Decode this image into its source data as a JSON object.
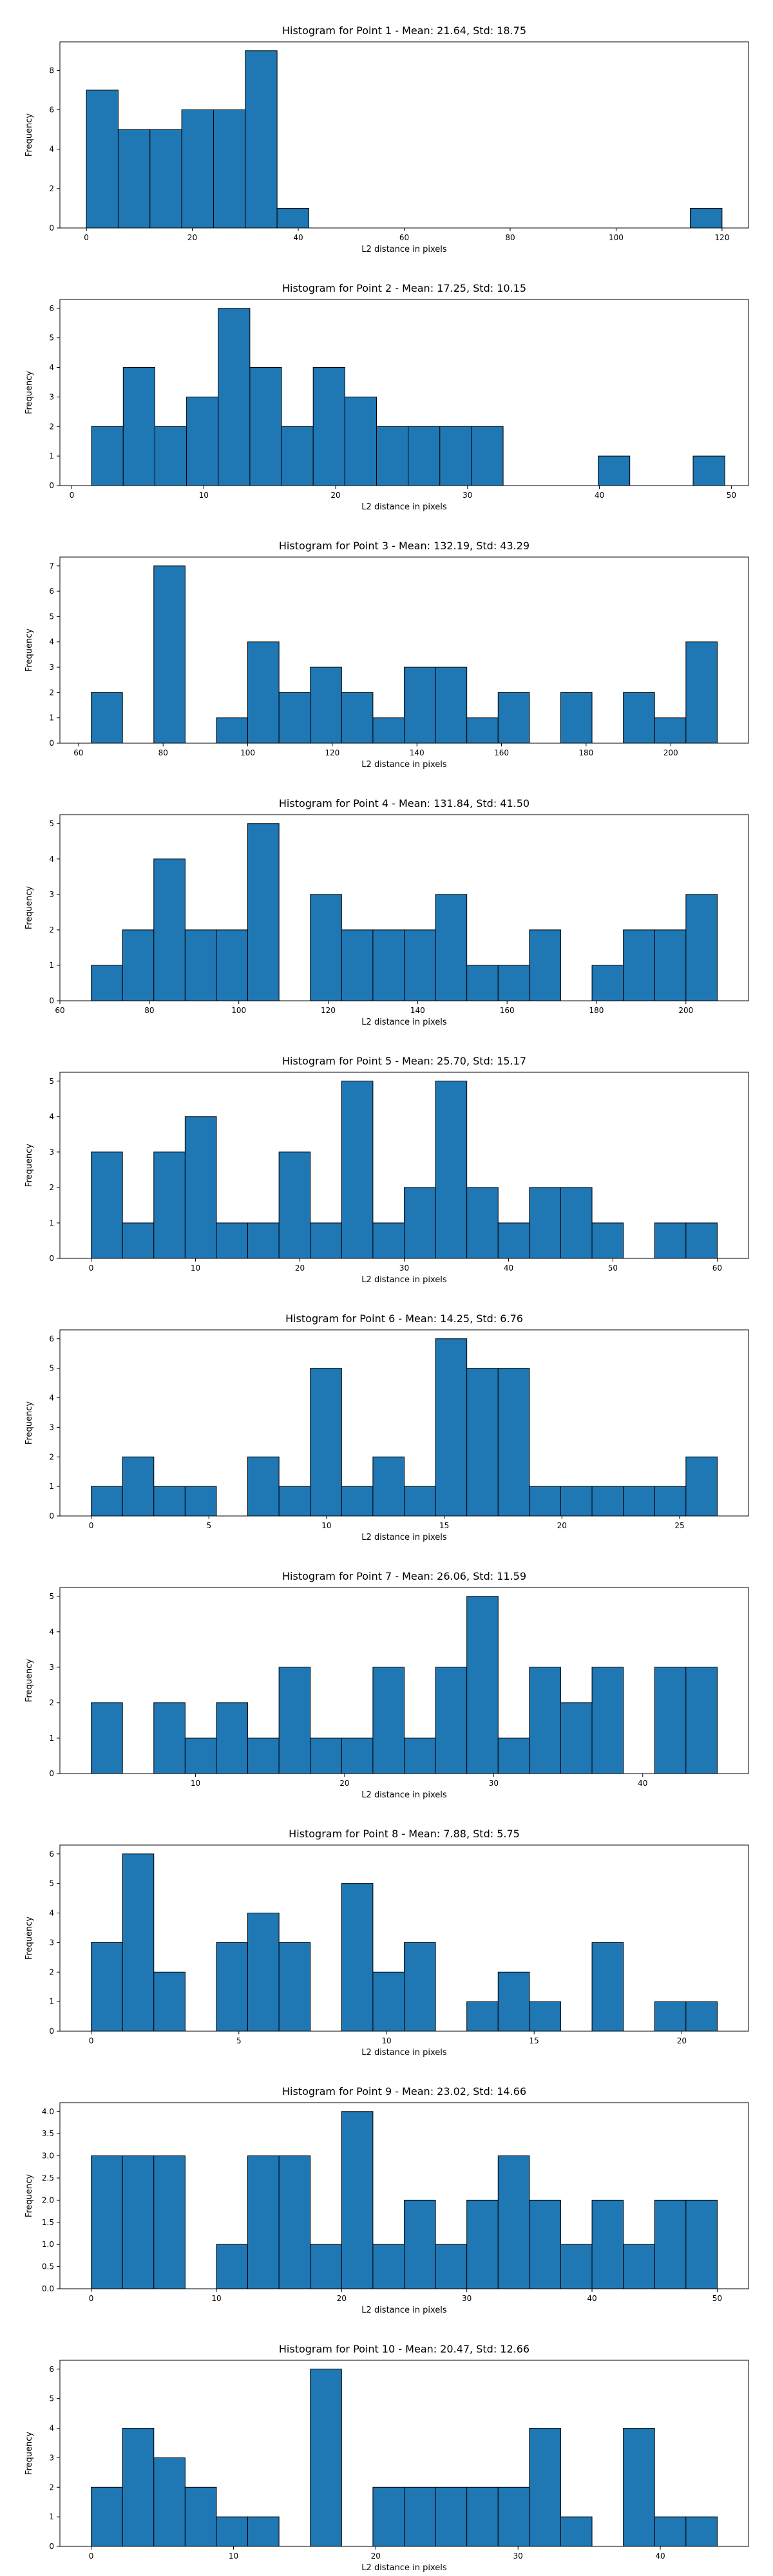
{
  "bar_color": "#1f77b4",
  "edge_color": "#000000",
  "chart_data": [
    {
      "type": "bar",
      "title": "Histogram for Point 1 - Mean: 21.64, Std: 18.75",
      "xlabel": "L2 distance in pixels",
      "ylabel": "Frequency",
      "bin_start": 0,
      "bin_width": 6,
      "counts": [
        7,
        5,
        5,
        6,
        6,
        9,
        1,
        0,
        0,
        0,
        0,
        0,
        0,
        0,
        0,
        0,
        0,
        0,
        0,
        1
      ],
      "xlim": [
        -5,
        125
      ],
      "ylim": [
        0,
        9.45
      ],
      "xticks": [
        0,
        20,
        40,
        60,
        80,
        100,
        120
      ],
      "yticks": [
        0,
        2,
        4,
        6,
        8
      ],
      "grid": false,
      "legend": false
    },
    {
      "type": "bar",
      "title": "Histogram for Point 2 - Mean: 17.25, Std: 10.15",
      "xlabel": "L2 distance in pixels",
      "ylabel": "Frequency",
      "bin_start": 1.5,
      "bin_width": 2.4,
      "counts": [
        2,
        4,
        2,
        3,
        6,
        4,
        2,
        4,
        3,
        2,
        2,
        2,
        2,
        0,
        0,
        0,
        1,
        0,
        0,
        1
      ],
      "xlim": [
        -0.9,
        51.3
      ],
      "ylim": [
        0,
        6.3
      ],
      "xticks": [
        0,
        10,
        20,
        30,
        40,
        50
      ],
      "yticks": [
        0,
        1,
        2,
        3,
        4,
        5,
        6
      ],
      "grid": false,
      "legend": false
    },
    {
      "type": "bar",
      "title": "Histogram for Point 3 - Mean: 132.19, Std: 43.29",
      "xlabel": "L2 distance in pixels",
      "ylabel": "Frequency",
      "bin_start": 63,
      "bin_width": 7.4,
      "counts": [
        2,
        0,
        7,
        0,
        1,
        4,
        2,
        3,
        2,
        1,
        3,
        3,
        1,
        2,
        0,
        2,
        0,
        2,
        1,
        4
      ],
      "xlim": [
        55.6,
        218.4
      ],
      "ylim": [
        0,
        7.35
      ],
      "xticks": [
        60,
        80,
        100,
        120,
        140,
        160,
        180,
        200
      ],
      "yticks": [
        0,
        1,
        2,
        3,
        4,
        5,
        6,
        7
      ],
      "grid": false,
      "legend": false
    },
    {
      "type": "bar",
      "title": "Histogram for Point 4 - Mean: 131.84, Std: 41.50",
      "xlabel": "L2 distance in pixels",
      "ylabel": "Frequency",
      "bin_start": 67,
      "bin_width": 7,
      "counts": [
        1,
        2,
        4,
        2,
        2,
        5,
        0,
        3,
        2,
        2,
        2,
        3,
        1,
        1,
        2,
        0,
        1,
        2,
        2,
        3
      ],
      "xlim": [
        60,
        214
      ],
      "ylim": [
        0,
        5.25
      ],
      "xticks": [
        60,
        80,
        100,
        120,
        140,
        160,
        180,
        200
      ],
      "yticks": [
        0,
        1,
        2,
        3,
        4,
        5
      ],
      "grid": false,
      "legend": false
    },
    {
      "type": "bar",
      "title": "Histogram for Point 5 - Mean: 25.70, Std: 15.17",
      "xlabel": "L2 distance in pixels",
      "ylabel": "Frequency",
      "bin_start": 0,
      "bin_width": 3,
      "counts": [
        3,
        1,
        3,
        4,
        1,
        1,
        3,
        1,
        5,
        1,
        2,
        5,
        2,
        1,
        2,
        2,
        1,
        0,
        1,
        1
      ],
      "xlim": [
        -3,
        63
      ],
      "ylim": [
        0,
        5.25
      ],
      "xticks": [
        0,
        10,
        20,
        30,
        40,
        50,
        60
      ],
      "yticks": [
        0,
        1,
        2,
        3,
        4,
        5
      ],
      "grid": false,
      "legend": false
    },
    {
      "type": "bar",
      "title": "Histogram for Point 6 - Mean: 14.25, Std: 6.76",
      "xlabel": "L2 distance in pixels",
      "ylabel": "Frequency",
      "bin_start": 0,
      "bin_width": 1.33,
      "counts": [
        1,
        2,
        1,
        1,
        0,
        2,
        1,
        5,
        1,
        2,
        1,
        6,
        5,
        5,
        1,
        1,
        1,
        1,
        1,
        2
      ],
      "xlim": [
        -1.33,
        27.93
      ],
      "ylim": [
        0,
        6.3
      ],
      "xticks": [
        0,
        5,
        10,
        15,
        20,
        25
      ],
      "yticks": [
        0,
        1,
        2,
        3,
        4,
        5,
        6
      ],
      "grid": false,
      "legend": false
    },
    {
      "type": "bar",
      "title": "Histogram for Point 7 - Mean: 26.06, Std: 11.59",
      "xlabel": "L2 distance in pixels",
      "ylabel": "Frequency",
      "bin_start": 3,
      "bin_width": 2.1,
      "counts": [
        2,
        0,
        2,
        1,
        2,
        1,
        3,
        1,
        1,
        3,
        1,
        3,
        5,
        1,
        3,
        2,
        3,
        0,
        3,
        3
      ],
      "xlim": [
        0.9,
        47.1
      ],
      "ylim": [
        0,
        5.25
      ],
      "xticks": [
        10,
        20,
        30,
        40
      ],
      "yticks": [
        0,
        1,
        2,
        3,
        4,
        5
      ],
      "grid": false,
      "legend": false
    },
    {
      "type": "bar",
      "title": "Histogram for Point 8 - Mean: 7.88, Std: 5.75",
      "xlabel": "L2 distance in pixels",
      "ylabel": "Frequency",
      "bin_start": 0,
      "bin_width": 1.06,
      "counts": [
        3,
        6,
        2,
        0,
        3,
        4,
        3,
        0,
        5,
        2,
        3,
        0,
        1,
        2,
        1,
        0,
        3,
        0,
        1,
        1
      ],
      "xlim": [
        -1.06,
        22.26
      ],
      "ylim": [
        0,
        6.3
      ],
      "xticks": [
        0,
        5,
        10,
        15,
        20
      ],
      "yticks": [
        0,
        1,
        2,
        3,
        4,
        5,
        6
      ],
      "grid": false,
      "legend": false
    },
    {
      "type": "bar",
      "title": "Histogram for Point 9 - Mean: 23.02, Std: 14.66",
      "xlabel": "L2 distance in pixels",
      "ylabel": "Frequency",
      "bin_start": 0,
      "bin_width": 2.5,
      "counts": [
        3,
        3,
        3,
        0,
        1,
        3,
        3,
        1,
        4,
        1,
        2,
        1,
        2,
        3,
        2,
        1,
        2,
        1,
        2,
        2
      ],
      "xlim": [
        -2.5,
        52.5
      ],
      "ylim": [
        0,
        4.2
      ],
      "xticks": [
        0,
        10,
        20,
        30,
        40,
        50
      ],
      "xtick_labels": [
        "0",
        "10",
        "20",
        "30",
        "40",
        "50"
      ],
      "yticks": [
        0,
        0.5,
        1,
        1.5,
        2,
        2.5,
        3,
        3.5,
        4
      ],
      "ytick_labels": [
        "0.0",
        "0.5",
        "1.0",
        "1.5",
        "2.0",
        "2.5",
        "3.0",
        "3.5",
        "4.0"
      ],
      "grid": false,
      "legend": false
    },
    {
      "type": "bar",
      "title": "Histogram for Point 10 - Mean: 20.47, Std: 12.66",
      "xlabel": "L2 distance in pixels",
      "ylabel": "Frequency",
      "bin_start": 0,
      "bin_width": 2.2,
      "counts": [
        2,
        4,
        3,
        2,
        1,
        1,
        0,
        6,
        0,
        2,
        2,
        2,
        2,
        2,
        4,
        1,
        0,
        4,
        1,
        1
      ],
      "xlim": [
        -2.2,
        46.2
      ],
      "ylim": [
        0,
        6.3
      ],
      "xticks": [
        0,
        10,
        20,
        30,
        40
      ],
      "yticks": [
        0,
        1,
        2,
        3,
        4,
        5,
        6
      ],
      "grid": false,
      "legend": false
    }
  ]
}
